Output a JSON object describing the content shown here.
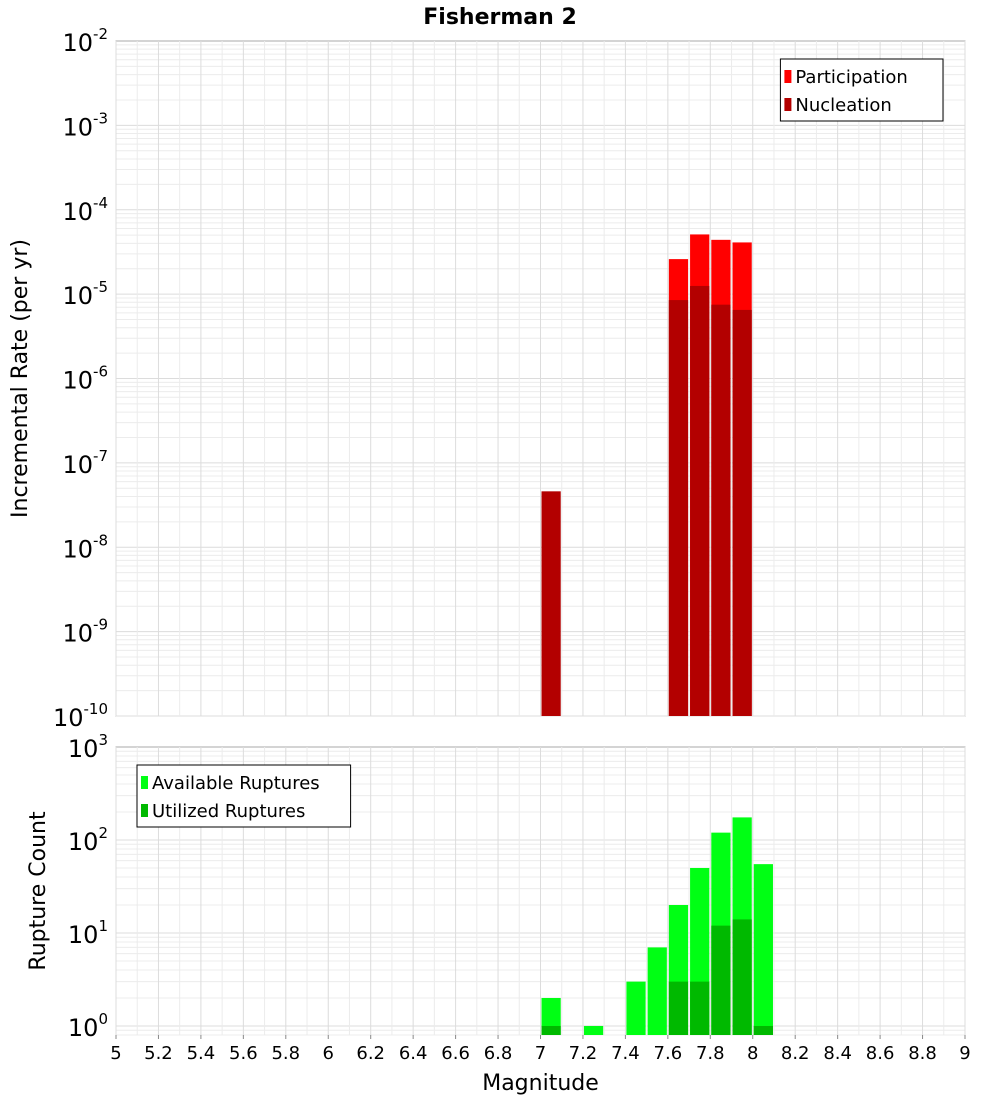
{
  "chart_data": [
    {
      "type": "bar",
      "title": "Fisherman 2",
      "ylabel": "Incremental Rate (per yr)",
      "xlabel": "",
      "ylog": true,
      "ylim": [
        1e-10,
        0.01
      ],
      "xlim": [
        5,
        9
      ],
      "bin_width": 0.1,
      "grid": true,
      "legend_position": "top-right",
      "series": [
        {
          "name": "Participation",
          "color": "#ff0000",
          "x": [
            7.65,
            7.75,
            7.85,
            7.95
          ],
          "values": [
            2.6e-05,
            5.1e-05,
            4.4e-05,
            4.1e-05
          ]
        },
        {
          "name": "Nucleation",
          "color": "#b30000",
          "x": [
            7.05,
            7.65,
            7.75,
            7.85,
            7.95
          ],
          "values": [
            4.6e-08,
            8.5e-06,
            1.25e-05,
            7.5e-06,
            6.5e-06
          ]
        }
      ],
      "y_ticks": [
        {
          "base": "10",
          "exp": "-10",
          "value": 1e-10
        },
        {
          "base": "10",
          "exp": "-9",
          "value": 1e-09
        },
        {
          "base": "10",
          "exp": "-8",
          "value": 1e-08
        },
        {
          "base": "10",
          "exp": "-7",
          "value": 1e-07
        },
        {
          "base": "10",
          "exp": "-6",
          "value": 1e-06
        },
        {
          "base": "10",
          "exp": "-5",
          "value": 1e-05
        },
        {
          "base": "10",
          "exp": "-4",
          "value": 0.0001
        },
        {
          "base": "10",
          "exp": "-3",
          "value": 0.001
        },
        {
          "base": "10",
          "exp": "-2",
          "value": 0.01
        }
      ]
    },
    {
      "type": "bar",
      "title": "",
      "ylabel": "Rupture Count",
      "xlabel": "Magnitude",
      "ylog": true,
      "ylim": [
        0.8,
        1000
      ],
      "xlim": [
        5,
        9
      ],
      "bin_width": 0.1,
      "grid": true,
      "legend_position": "top-left",
      "series": [
        {
          "name": "Available Ruptures",
          "color": "#00ff14",
          "x": [
            7.05,
            7.25,
            7.45,
            7.55,
            7.65,
            7.75,
            7.85,
            7.95,
            8.05
          ],
          "values": [
            2,
            1,
            3,
            7,
            20,
            50,
            120,
            175,
            55
          ]
        },
        {
          "name": "Utilized Ruptures",
          "color": "#00b900",
          "x": [
            7.05,
            7.65,
            7.75,
            7.85,
            7.95,
            8.05
          ],
          "values": [
            1,
            3,
            3,
            12,
            14,
            1
          ]
        }
      ],
      "y_ticks": [
        {
          "base": "10",
          "exp": "0",
          "value": 1
        },
        {
          "base": "10",
          "exp": "1",
          "value": 10
        },
        {
          "base": "10",
          "exp": "2",
          "value": 100
        },
        {
          "base": "10",
          "exp": "3",
          "value": 1000
        }
      ],
      "x_ticks": [
        "5",
        "5.2",
        "5.4",
        "5.6",
        "5.8",
        "6",
        "6.2",
        "6.4",
        "6.6",
        "6.8",
        "7",
        "7.2",
        "7.4",
        "7.6",
        "7.8",
        "8",
        "8.2",
        "8.4",
        "8.6",
        "8.8",
        "9"
      ]
    }
  ]
}
